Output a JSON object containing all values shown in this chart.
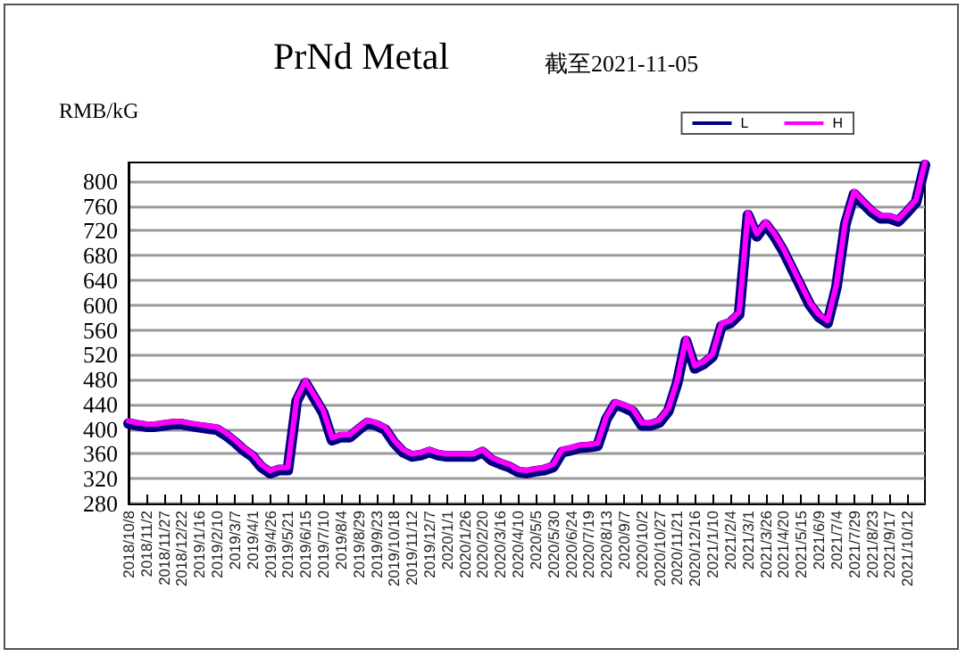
{
  "chart_data": {
    "type": "line",
    "title": "PrNd Metal",
    "subtitle": "截至2021-11-05",
    "ylabel": "RMB/kG",
    "categories": [
      "2018/10/8",
      null,
      "2018/11/2",
      null,
      "2018/11/27",
      null,
      "2018/12/22",
      null,
      "2019/1/16",
      null,
      "2019/2/10",
      null,
      "2019/3/7",
      null,
      "2019/4/1",
      null,
      "2019/4/26",
      null,
      "2019/5/21",
      null,
      "2019/6/15",
      null,
      "2019/7/10",
      null,
      "2019/8/4",
      null,
      "2019/8/29",
      null,
      "2019/9/23",
      null,
      "2019/10/18",
      null,
      "2019/11/12",
      null,
      "2019/12/7",
      null,
      "2020/1/1",
      null,
      "2020/1/26",
      null,
      "2020/2/20",
      null,
      "2020/3/16",
      null,
      "2020/4/10",
      null,
      "2020/5/5",
      null,
      "2020/5/30",
      null,
      "2020/6/24",
      null,
      "2020/7/19",
      null,
      "2020/8/13",
      null,
      "2020/9/7",
      null,
      "2020/10/2",
      null,
      "2020/10/27",
      null,
      "2020/11/21",
      null,
      "2020/12/16",
      null,
      "2021/1/10",
      null,
      "2021/2/4",
      null,
      "2021/3/1",
      null,
      "2021/3/26",
      null,
      "2021/4/20",
      null,
      "2021/5/15",
      null,
      "2021/6/9",
      null,
      "2021/7/4",
      null,
      "2021/7/29",
      null,
      "2021/8/23",
      null,
      "2021/9/17",
      null,
      "2021/10/12",
      null,
      null
    ],
    "series": [
      {
        "name": "L",
        "color": "#000080",
        "values": [
          409,
          406,
          404,
          404,
          406,
          408,
          408,
          405,
          403,
          401,
          399,
          390,
          379,
          366,
          356,
          339,
          329,
          334,
          334,
          445,
          474,
          450,
          426,
          382,
          387,
          387,
          399,
          410,
          406,
          399,
          378,
          363,
          356,
          358,
          363,
          358,
          356,
          356,
          356,
          356,
          363,
          350,
          344,
          339,
          331,
          329,
          332,
          334,
          339,
          363,
          366,
          370,
          371,
          373,
          416,
          440,
          435,
          428,
          406,
          406,
          411,
          429,
          474,
          542,
          498,
          505,
          517,
          566,
          571,
          585,
          745,
          711,
          730,
          711,
          687,
          658,
          629,
          600,
          581,
          571,
          629,
          730,
          779,
          764,
          750,
          740,
          740,
          735,
          750,
          766,
          826
        ]
      },
      {
        "name": "H",
        "color": "#ff00ff",
        "values": [
          413,
          410,
          408,
          408,
          410,
          412,
          412,
          409,
          407,
          405,
          403,
          394,
          383,
          370,
          360,
          343,
          333,
          338,
          338,
          449,
          478,
          454,
          430,
          386,
          391,
          391,
          403,
          414,
          410,
          403,
          382,
          367,
          360,
          362,
          367,
          362,
          360,
          360,
          360,
          360,
          367,
          354,
          348,
          343,
          335,
          333,
          336,
          338,
          343,
          367,
          370,
          374,
          375,
          377,
          420,
          444,
          439,
          432,
          410,
          410,
          415,
          433,
          478,
          546,
          502,
          509,
          521,
          570,
          575,
          589,
          749,
          715,
          734,
          715,
          691,
          662,
          633,
          604,
          585,
          575,
          633,
          734,
          783,
          768,
          754,
          744,
          744,
          739,
          754,
          770,
          830
        ]
      }
    ],
    "ylim": [
      280,
      830
    ],
    "yticks": [
      280,
      320,
      360,
      400,
      440,
      480,
      520,
      560,
      600,
      640,
      680,
      720,
      760,
      800
    ],
    "grid": "y",
    "legend": "top right",
    "marker": "none",
    "line_style": "solid"
  }
}
